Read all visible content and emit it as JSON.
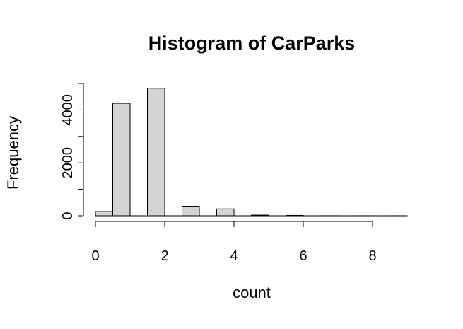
{
  "chart_data": {
    "type": "bar",
    "title": "Histogram of CarParks",
    "xlabel": "count",
    "ylabel": "Frequency",
    "bins": [
      {
        "x0": 0.0,
        "x1": 0.5,
        "count": 160
      },
      {
        "x0": 0.5,
        "x1": 1.0,
        "count": 4250
      },
      {
        "x0": 1.0,
        "x1": 1.5,
        "count": 0
      },
      {
        "x0": 1.5,
        "x1": 2.0,
        "count": 4820
      },
      {
        "x0": 2.0,
        "x1": 2.5,
        "count": 0
      },
      {
        "x0": 2.5,
        "x1": 3.0,
        "count": 360
      },
      {
        "x0": 3.0,
        "x1": 3.5,
        "count": 0
      },
      {
        "x0": 3.5,
        "x1": 4.0,
        "count": 260
      },
      {
        "x0": 4.0,
        "x1": 4.5,
        "count": 0
      },
      {
        "x0": 4.5,
        "x1": 5.0,
        "count": 25
      },
      {
        "x0": 5.0,
        "x1": 5.5,
        "count": 0
      },
      {
        "x0": 5.5,
        "x1": 6.0,
        "count": 15
      },
      {
        "x0": 6.0,
        "x1": 6.5,
        "count": 0
      },
      {
        "x0": 6.5,
        "x1": 7.0,
        "count": 2
      },
      {
        "x0": 7.0,
        "x1": 7.5,
        "count": 0
      },
      {
        "x0": 7.5,
        "x1": 8.0,
        "count": 1
      },
      {
        "x0": 8.0,
        "x1": 8.5,
        "count": 0
      },
      {
        "x0": 8.5,
        "x1": 9.0,
        "count": 1
      }
    ],
    "xlim": [
      0,
      9
    ],
    "ylim": [
      0,
      5000
    ],
    "x_ticks": [
      0,
      2,
      4,
      6,
      8
    ],
    "x_tick_labels": [
      "0",
      "2",
      "4",
      "6",
      "8"
    ],
    "y_ticks": [
      0,
      1000,
      2000,
      3000,
      4000,
      5000
    ],
    "y_tick_labels": [
      "0",
      "",
      "2000",
      "",
      "4000",
      ""
    ],
    "bar_color": "#d3d3d3",
    "bar_border_color": "#000000",
    "grid": false,
    "legend": "none"
  }
}
